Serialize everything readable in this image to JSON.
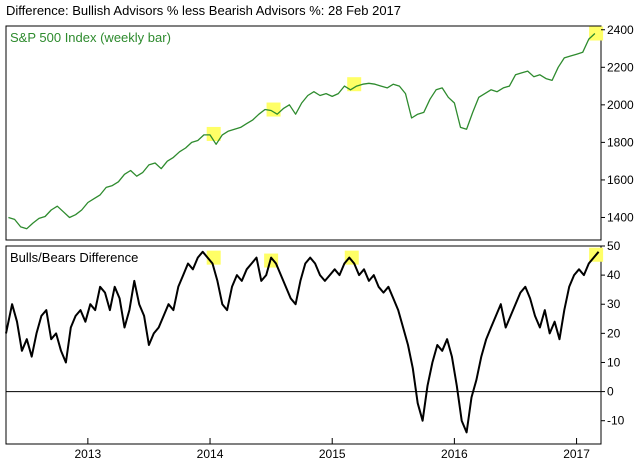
{
  "title": "Difference: Bullish Advisors % less Bearish Advisors %: 28 Feb 2017",
  "colors": {
    "sp500": "#2e8b2e",
    "difference": "#000000",
    "highlight": "#ffff66",
    "frame": "#000000",
    "zero_line": "#000000"
  },
  "chart_data": [
    {
      "type": "line",
      "panel": "top",
      "title": "S&P 500 Index (weekly bar)",
      "xlim": [
        2012.33,
        2017.2
      ],
      "ylim": [
        1280,
        2420
      ],
      "yticks": [
        1400,
        1600,
        1800,
        2000,
        2200,
        2400
      ],
      "grid": false,
      "series": [
        {
          "x": [
            2012.35,
            2012.4,
            2012.45,
            2012.5,
            2012.55,
            2012.6,
            2012.65,
            2012.7,
            2012.75,
            2012.8,
            2012.85,
            2012.9,
            2012.95,
            2013.0,
            2013.05,
            2013.1,
            2013.15,
            2013.2,
            2013.25,
            2013.3,
            2013.35,
            2013.4,
            2013.45,
            2013.5,
            2013.55,
            2013.6,
            2013.65,
            2013.7,
            2013.75,
            2013.8,
            2013.85,
            2013.9,
            2013.95,
            2014.0,
            2014.05,
            2014.1,
            2014.15,
            2014.2,
            2014.25,
            2014.3,
            2014.35,
            2014.4,
            2014.45,
            2014.5,
            2014.55,
            2014.6,
            2014.65,
            2014.7,
            2014.75,
            2014.8,
            2014.85,
            2014.9,
            2014.95,
            2015.0,
            2015.05,
            2015.1,
            2015.15,
            2015.2,
            2015.25,
            2015.3,
            2015.35,
            2015.4,
            2015.45,
            2015.5,
            2015.55,
            2015.6,
            2015.65,
            2015.7,
            2015.75,
            2015.8,
            2015.85,
            2015.9,
            2015.95,
            2016.0,
            2016.05,
            2016.1,
            2016.15,
            2016.2,
            2016.25,
            2016.3,
            2016.35,
            2016.4,
            2016.45,
            2016.5,
            2016.55,
            2016.6,
            2016.65,
            2016.7,
            2016.75,
            2016.8,
            2016.85,
            2016.9,
            2016.95,
            2017.0,
            2017.05,
            2017.1,
            2017.15
          ],
          "values": [
            1400,
            1390,
            1350,
            1340,
            1370,
            1395,
            1405,
            1440,
            1460,
            1430,
            1400,
            1415,
            1440,
            1480,
            1500,
            1520,
            1560,
            1570,
            1590,
            1630,
            1650,
            1620,
            1640,
            1680,
            1690,
            1660,
            1700,
            1720,
            1750,
            1770,
            1800,
            1810,
            1840,
            1840,
            1790,
            1840,
            1860,
            1870,
            1880,
            1900,
            1920,
            1950,
            1975,
            1970,
            1950,
            1980,
            2000,
            1950,
            2010,
            2050,
            2070,
            2050,
            2060,
            2045,
            2060,
            2100,
            2080,
            2100,
            2110,
            2115,
            2110,
            2100,
            2090,
            2110,
            2100,
            2060,
            1930,
            1950,
            1960,
            2030,
            2080,
            2090,
            2040,
            2010,
            1880,
            1870,
            1960,
            2040,
            2060,
            2080,
            2070,
            2090,
            2100,
            2160,
            2170,
            2180,
            2150,
            2160,
            2140,
            2130,
            2200,
            2250,
            2260,
            2270,
            2280,
            2350,
            2380
          ]
        }
      ],
      "highlights": [
        {
          "x": 2014.03,
          "y": 1845
        },
        {
          "x": 2014.52,
          "y": 1975
        },
        {
          "x": 2015.18,
          "y": 2110
        },
        {
          "x": 2017.16,
          "y": 2380
        }
      ]
    },
    {
      "type": "line",
      "panel": "bottom",
      "title": "Bulls/Bears Difference",
      "xlim": [
        2012.33,
        2017.2
      ],
      "ylim": [
        -18,
        50
      ],
      "yticks": [
        -10,
        0,
        10,
        20,
        30,
        40,
        50
      ],
      "xticks": [
        "2013",
        "2014",
        "2015",
        "2016",
        "2017"
      ],
      "xtick_values": [
        2013,
        2014,
        2015,
        2016,
        2017
      ],
      "reference_line": 0,
      "grid": false,
      "series": [
        {
          "x": [
            2012.33,
            2012.38,
            2012.42,
            2012.46,
            2012.5,
            2012.54,
            2012.58,
            2012.62,
            2012.66,
            2012.7,
            2012.74,
            2012.78,
            2012.82,
            2012.86,
            2012.9,
            2012.94,
            2012.98,
            2013.02,
            2013.06,
            2013.1,
            2013.14,
            2013.18,
            2013.22,
            2013.26,
            2013.3,
            2013.34,
            2013.38,
            2013.42,
            2013.46,
            2013.5,
            2013.54,
            2013.58,
            2013.62,
            2013.66,
            2013.7,
            2013.74,
            2013.78,
            2013.82,
            2013.86,
            2013.9,
            2013.94,
            2013.98,
            2014.02,
            2014.06,
            2014.1,
            2014.14,
            2014.18,
            2014.22,
            2014.26,
            2014.3,
            2014.34,
            2014.38,
            2014.42,
            2014.46,
            2014.5,
            2014.54,
            2014.58,
            2014.62,
            2014.66,
            2014.7,
            2014.74,
            2014.78,
            2014.82,
            2014.86,
            2014.9,
            2014.94,
            2014.98,
            2015.02,
            2015.06,
            2015.1,
            2015.14,
            2015.18,
            2015.22,
            2015.26,
            2015.3,
            2015.34,
            2015.38,
            2015.42,
            2015.46,
            2015.5,
            2015.54,
            2015.58,
            2015.62,
            2015.66,
            2015.7,
            2015.74,
            2015.78,
            2015.82,
            2015.86,
            2015.9,
            2015.94,
            2015.98,
            2016.02,
            2016.06,
            2016.1,
            2016.14,
            2016.18,
            2016.22,
            2016.26,
            2016.3,
            2016.34,
            2016.38,
            2016.42,
            2016.46,
            2016.5,
            2016.54,
            2016.58,
            2016.62,
            2016.66,
            2016.7,
            2016.74,
            2016.78,
            2016.82,
            2016.86,
            2016.9,
            2016.94,
            2016.98,
            2017.02,
            2017.06,
            2017.1,
            2017.14,
            2017.18
          ],
          "values": [
            20,
            30,
            24,
            14,
            18,
            12,
            20,
            26,
            28,
            18,
            20,
            14,
            10,
            22,
            26,
            28,
            24,
            30,
            28,
            36,
            34,
            28,
            36,
            32,
            22,
            28,
            38,
            30,
            26,
            16,
            20,
            22,
            26,
            30,
            28,
            36,
            40,
            44,
            42,
            46,
            48,
            46,
            44,
            38,
            30,
            28,
            36,
            40,
            38,
            42,
            44,
            46,
            38,
            40,
            46,
            44,
            40,
            36,
            32,
            30,
            38,
            44,
            46,
            44,
            40,
            38,
            40,
            42,
            40,
            44,
            46,
            44,
            40,
            42,
            38,
            40,
            36,
            34,
            36,
            32,
            28,
            22,
            16,
            8,
            -4,
            -10,
            2,
            10,
            16,
            14,
            18,
            12,
            2,
            -10,
            -14,
            -2,
            4,
            12,
            18,
            22,
            26,
            30,
            22,
            26,
            30,
            34,
            36,
            32,
            26,
            22,
            28,
            20,
            24,
            18,
            28,
            36,
            40,
            42,
            40,
            44,
            46,
            48
          ]
        }
      ],
      "highlights": [
        {
          "x": 2014.03,
          "y": 46
        },
        {
          "x": 2014.5,
          "y": 45
        },
        {
          "x": 2015.16,
          "y": 46
        },
        {
          "x": 2017.16,
          "y": 47
        }
      ]
    }
  ]
}
